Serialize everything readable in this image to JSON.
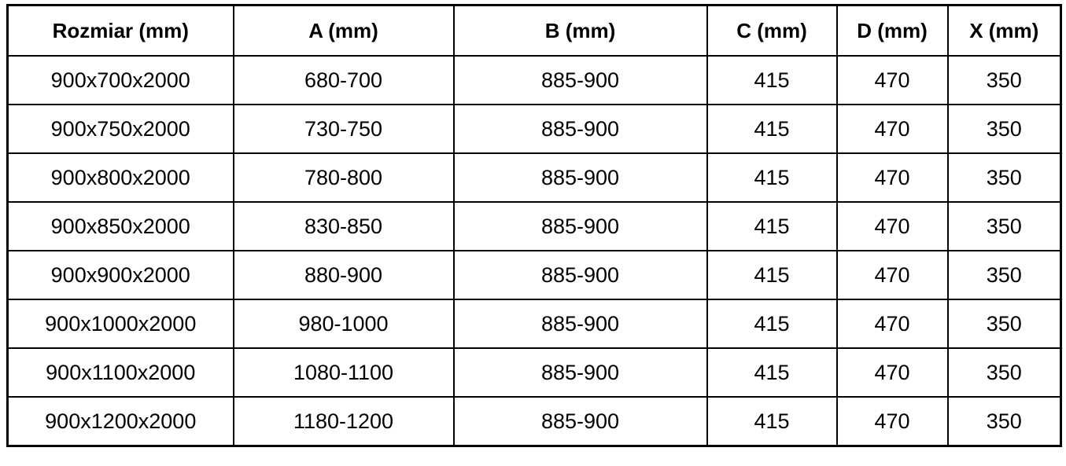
{
  "colors": {
    "border": "#000000",
    "text": "#000000",
    "background": "#ffffff"
  },
  "chart_data": {
    "type": "table",
    "title": "",
    "columns": [
      "Rozmiar (mm)",
      "A (mm)",
      "B (mm)",
      "C (mm)",
      "D (mm)",
      "X (mm)"
    ],
    "rows": [
      [
        "900x700x2000",
        "680-700",
        "885-900",
        "415",
        "470",
        "350"
      ],
      [
        "900x750x2000",
        "730-750",
        "885-900",
        "415",
        "470",
        "350"
      ],
      [
        "900x800x2000",
        "780-800",
        "885-900",
        "415",
        "470",
        "350"
      ],
      [
        "900x850x2000",
        "830-850",
        "885-900",
        "415",
        "470",
        "350"
      ],
      [
        "900x900x2000",
        "880-900",
        "885-900",
        "415",
        "470",
        "350"
      ],
      [
        "900x1000x2000",
        "980-1000",
        "885-900",
        "415",
        "470",
        "350"
      ],
      [
        "900x1100x2000",
        "1080-1100",
        "885-900",
        "415",
        "470",
        "350"
      ],
      [
        "900x1200x2000",
        "1180-1200",
        "885-900",
        "415",
        "470",
        "350"
      ]
    ],
    "layout": {
      "grid": true,
      "header_bold": true,
      "alignment": "center"
    }
  }
}
